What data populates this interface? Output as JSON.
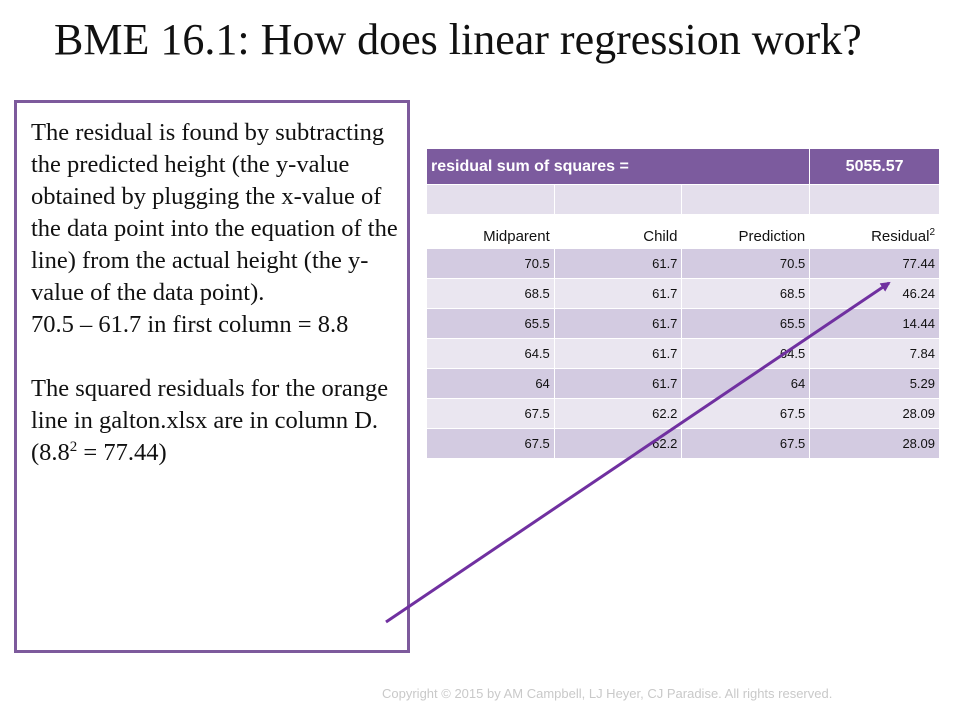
{
  "title": "BME 16.1: How does linear regression work?",
  "textbox": {
    "paragraph1": "The residual is found by subtracting the predicted height (the y-value obtained by plugging the x-value of the data point into the equation of the line) from the actual height (the y-value of the data point).",
    "paragraph2": "70.5 – 61.7 in first column = 8.8",
    "paragraph3_before": "The squared residuals for the orange line in galton.xlsx are in column D. (8.8",
    "paragraph3_sup": "2",
    "paragraph3_after": " = 77.44)"
  },
  "table": {
    "header_label": "residual sum of squares =",
    "header_value": "5055.57",
    "columns": [
      "Midparent",
      "Child",
      "Prediction",
      "Residual"
    ],
    "residual_sup": "2",
    "rows": [
      [
        "70.5",
        "61.7",
        "70.5",
        "77.44"
      ],
      [
        "68.5",
        "61.7",
        "68.5",
        "46.24"
      ],
      [
        "65.5",
        "61.7",
        "65.5",
        "14.44"
      ],
      [
        "64.5",
        "61.7",
        "64.5",
        "7.84"
      ],
      [
        "64",
        "61.7",
        "64",
        "5.29"
      ],
      [
        "67.5",
        "62.2",
        "67.5",
        "28.09"
      ],
      [
        "67.5",
        "62.2",
        "67.5",
        "28.09"
      ]
    ]
  },
  "colors": {
    "accent": "#7c5b9e",
    "row_dark": "#d3cbe1",
    "row_light": "#eae6f0",
    "arrow": "#7030a0"
  },
  "footer": "Copyright © 2015 by AM Campbell, LJ Heyer, CJ Paradise. All rights reserved."
}
